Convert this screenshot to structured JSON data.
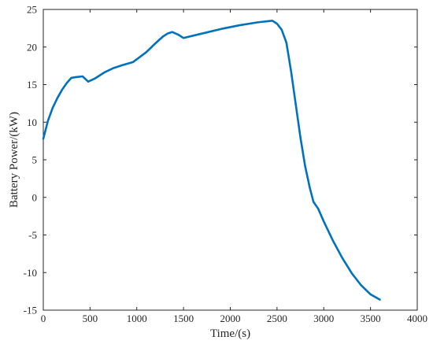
{
  "chart_data": {
    "type": "line",
    "title": "",
    "xlabel": "Time/(s)",
    "ylabel": "Battery Power/(kW)",
    "xlim": [
      0,
      4000
    ],
    "ylim": [
      -15,
      25
    ],
    "xticks": [
      0,
      500,
      1000,
      1500,
      2000,
      2500,
      3000,
      3500,
      4000
    ],
    "yticks": [
      -15,
      -10,
      -5,
      0,
      5,
      10,
      15,
      20,
      25
    ],
    "grid": false,
    "legend": "none",
    "series": [
      {
        "color": "#0072BD",
        "x": [
          0,
          50,
          100,
          150,
          200,
          250,
          300,
          350,
          420,
          480,
          550,
          650,
          750,
          850,
          960,
          1100,
          1200,
          1280,
          1330,
          1380,
          1450,
          1500,
          1700,
          1900,
          2100,
          2300,
          2450,
          2500,
          2550,
          2600,
          2650,
          2700,
          2750,
          2800,
          2850,
          2890,
          2940,
          3000,
          3100,
          3200,
          3300,
          3400,
          3500,
          3600
        ],
        "y": [
          7.8,
          10.2,
          11.9,
          13.2,
          14.3,
          15.2,
          15.9,
          16.0,
          16.1,
          15.4,
          15.8,
          16.6,
          17.2,
          17.6,
          18.0,
          19.3,
          20.5,
          21.4,
          21.8,
          22.0,
          21.6,
          21.2,
          21.8,
          22.4,
          22.9,
          23.3,
          23.5,
          23.1,
          22.3,
          20.6,
          16.8,
          12.4,
          8.0,
          4.2,
          1.3,
          -0.6,
          -1.5,
          -3.2,
          -5.8,
          -8.1,
          -10.1,
          -11.7,
          -12.9,
          -13.6
        ]
      }
    ]
  }
}
